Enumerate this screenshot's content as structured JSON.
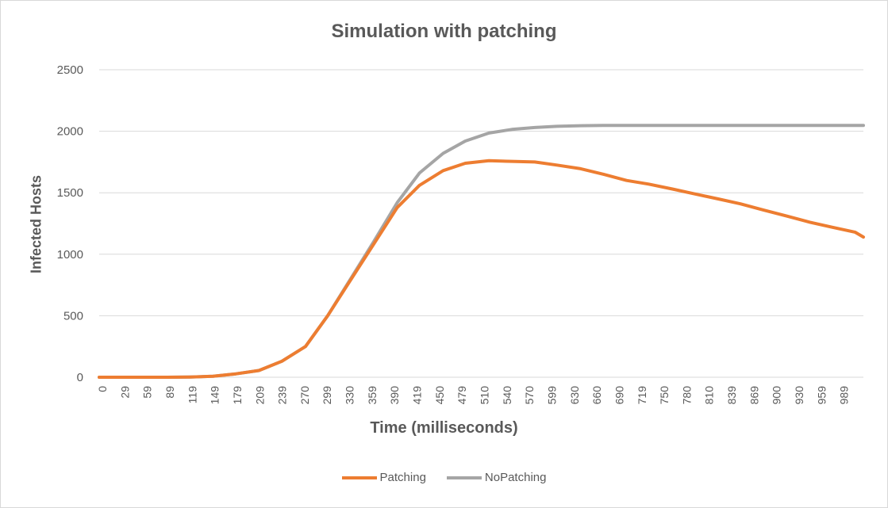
{
  "chart_data": {
    "type": "line",
    "title": "Simulation with patching",
    "xlabel": "Time (milliseconds)",
    "ylabel": "Infected Hosts",
    "xlim": [
      0,
      1000
    ],
    "ylim": [
      0,
      2500
    ],
    "y_ticks": [
      0,
      500,
      1000,
      1500,
      2000,
      2500
    ],
    "x_tick_labels": [
      "0",
      "29",
      "59",
      "89",
      "119",
      "149",
      "179",
      "209",
      "239",
      "270",
      "299",
      "330",
      "359",
      "390",
      "419",
      "450",
      "479",
      "510",
      "540",
      "570",
      "599",
      "630",
      "660",
      "690",
      "719",
      "750",
      "780",
      "810",
      "839",
      "869",
      "900",
      "930",
      "959",
      "989"
    ],
    "grid": "horizontal",
    "legend_position": "bottom",
    "series": [
      {
        "name": "Patching",
        "color": "#ED7D31",
        "x": [
          0,
          29,
          59,
          89,
          119,
          149,
          179,
          209,
          239,
          270,
          299,
          330,
          359,
          390,
          419,
          450,
          479,
          510,
          540,
          570,
          599,
          630,
          660,
          690,
          719,
          750,
          780,
          810,
          839,
          869,
          900,
          930,
          959,
          989,
          1000
        ],
        "values": [
          0,
          0,
          0,
          0,
          2,
          8,
          28,
          55,
          130,
          250,
          500,
          800,
          1080,
          1380,
          1560,
          1680,
          1740,
          1760,
          1755,
          1750,
          1725,
          1695,
          1650,
          1600,
          1570,
          1530,
          1490,
          1450,
          1410,
          1360,
          1310,
          1260,
          1220,
          1180,
          1140
        ]
      },
      {
        "name": "NoPatching",
        "color": "#A5A5A5",
        "x": [
          0,
          29,
          59,
          89,
          119,
          149,
          179,
          209,
          239,
          270,
          299,
          330,
          359,
          390,
          419,
          450,
          479,
          510,
          540,
          570,
          599,
          630,
          660,
          690,
          719,
          750,
          780,
          810,
          839,
          869,
          900,
          930,
          959,
          989,
          1000
        ],
        "values": [
          0,
          0,
          0,
          0,
          2,
          8,
          28,
          55,
          130,
          250,
          500,
          810,
          1100,
          1420,
          1660,
          1820,
          1920,
          1985,
          2015,
          2030,
          2040,
          2045,
          2048,
          2048,
          2048,
          2048,
          2048,
          2048,
          2048,
          2048,
          2048,
          2048,
          2048,
          2048,
          2048
        ]
      }
    ]
  }
}
